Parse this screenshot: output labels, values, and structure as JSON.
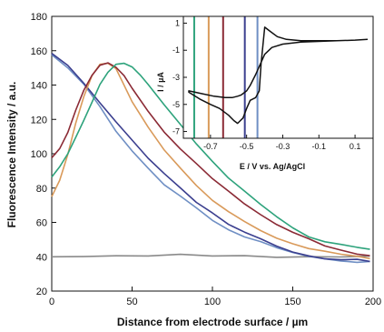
{
  "chart_data": [
    {
      "type": "line",
      "xlabel": "Distance from electrode surface / µm",
      "ylabel": "Fluorescence Intensity / a.u.",
      "xlim": [
        0,
        200
      ],
      "ylim": [
        20,
        180
      ],
      "xticks": [
        0,
        50,
        100,
        150,
        200
      ],
      "yticks": [
        20,
        40,
        60,
        80,
        100,
        120,
        140,
        160,
        180
      ],
      "grid": false,
      "series": [
        {
          "color": "#8a8a8a",
          "x": [
            0,
            20,
            40,
            60,
            80,
            100,
            120,
            140,
            160,
            180,
            198
          ],
          "y": [
            40,
            40.5,
            41,
            40.5,
            41,
            40,
            40.5,
            40,
            40.5,
            40,
            40
          ]
        },
        {
          "color": "#6f8fc4",
          "x": [
            0,
            10,
            20,
            30,
            40,
            50,
            60,
            70,
            80,
            90,
            100,
            110,
            120,
            130,
            140,
            150,
            160,
            170,
            180,
            190,
            198
          ],
          "y": [
            158,
            150,
            140,
            127,
            113,
            102,
            92,
            82,
            75,
            68,
            61,
            56,
            52,
            49,
            45,
            42,
            40,
            39,
            38,
            37,
            37
          ]
        },
        {
          "color": "#3b3f8f",
          "x": [
            0,
            10,
            20,
            30,
            40,
            50,
            60,
            70,
            80,
            90,
            100,
            110,
            120,
            130,
            140,
            150,
            160,
            170,
            180,
            190,
            198
          ],
          "y": [
            158,
            151,
            141,
            130,
            119,
            108,
            97,
            88,
            80,
            72,
            66,
            59,
            54,
            50,
            46,
            43,
            41,
            39,
            38,
            38,
            37
          ]
        },
        {
          "color": "#d99a5a",
          "x": [
            0,
            5,
            10,
            15,
            20,
            25,
            30,
            35,
            40,
            45,
            50,
            60,
            70,
            80,
            90,
            100,
            110,
            120,
            130,
            140,
            150,
            160,
            170,
            180,
            190,
            198
          ],
          "y": [
            75,
            85,
            100,
            118,
            133,
            145,
            152,
            153,
            150,
            140,
            130,
            115,
            102,
            92,
            82,
            73,
            66,
            60,
            55,
            51,
            48,
            45,
            43,
            41,
            40,
            39
          ]
        },
        {
          "color": "#8b2a35",
          "x": [
            0,
            5,
            10,
            15,
            20,
            25,
            30,
            35,
            40,
            45,
            50,
            60,
            70,
            80,
            90,
            100,
            110,
            120,
            130,
            140,
            150,
            160,
            170,
            180,
            190,
            198
          ],
          "y": [
            98,
            103,
            112,
            125,
            137,
            146,
            152,
            153,
            150,
            145,
            138,
            125,
            113,
            103,
            94,
            85,
            78,
            71,
            65,
            59,
            54,
            50,
            46,
            44,
            42,
            41
          ]
        },
        {
          "color": "#2ea37c",
          "x": [
            0,
            5,
            10,
            15,
            20,
            25,
            30,
            35,
            40,
            45,
            50,
            55,
            60,
            70,
            80,
            90,
            100,
            110,
            120,
            130,
            140,
            150,
            160,
            170,
            180,
            190,
            198
          ],
          "y": [
            86,
            92,
            100,
            110,
            120,
            130,
            140,
            147,
            152,
            153,
            151,
            146,
            140,
            128,
            117,
            106,
            96,
            86,
            78,
            70,
            63,
            57,
            52,
            49,
            47,
            45,
            44
          ]
        }
      ]
    },
    {
      "type": "line",
      "xlabel": "E / V vs. Ag/AgCl",
      "ylabel": "I / µA",
      "xlim": [
        -0.85,
        0.2
      ],
      "ylim": [
        -7.5,
        1.5
      ],
      "xticks": [
        "-0.7",
        "-0.5",
        "-0.3",
        "-0.1",
        "0.1"
      ],
      "yticks": [
        "1",
        "-1",
        "-3",
        "-5",
        "-7"
      ],
      "xtick_values": [
        -0.7,
        -0.5,
        -0.3,
        -0.1,
        0.1
      ],
      "ytick_values": [
        1,
        -1,
        -3,
        -5,
        -7
      ],
      "cv_curve": {
        "color": "#111111",
        "x": [
          0.17,
          0.1,
          0.0,
          -0.1,
          -0.2,
          -0.3,
          -0.36,
          -0.4,
          -0.42,
          -0.45,
          -0.48,
          -0.5,
          -0.53,
          -0.55,
          -0.58,
          -0.62,
          -0.68,
          -0.75,
          -0.82,
          -0.82,
          -0.76,
          -0.7,
          -0.65,
          -0.6,
          -0.57,
          -0.55,
          -0.52,
          -0.5,
          -0.48,
          -0.45,
          -0.43,
          -0.42,
          -0.4,
          -0.37,
          -0.33,
          -0.28,
          -0.2,
          -0.1,
          0.0,
          0.1,
          0.17
        ],
        "y": [
          -0.2,
          -0.25,
          -0.3,
          -0.35,
          -0.4,
          -0.55,
          -0.8,
          -1.3,
          -1.9,
          -2.8,
          -3.6,
          -4.0,
          -4.3,
          -4.4,
          -4.5,
          -4.5,
          -4.4,
          -4.2,
          -4.0,
          -4.1,
          -4.6,
          -5.0,
          -5.3,
          -5.8,
          -6.2,
          -6.4,
          -6.0,
          -5.3,
          -4.7,
          -4.5,
          -4.0,
          -2.0,
          0.7,
          0.4,
          0.0,
          -0.2,
          -0.3,
          -0.3,
          -0.3,
          -0.25,
          -0.2
        ]
      },
      "vlines": [
        {
          "x": -0.79,
          "color": "#2ea37c"
        },
        {
          "x": -0.71,
          "color": "#d99a5a"
        },
        {
          "x": -0.63,
          "color": "#8b2a35"
        },
        {
          "x": -0.51,
          "color": "#3b3f8f"
        },
        {
          "x": -0.44,
          "color": "#6f8fc4"
        }
      ]
    }
  ]
}
